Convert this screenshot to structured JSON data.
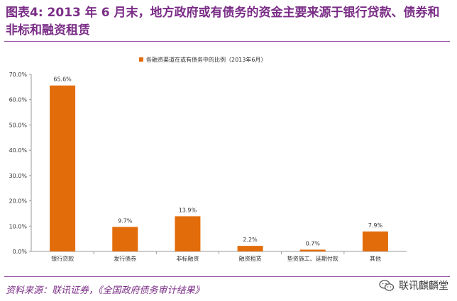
{
  "figure_title": "图表4:  2013 年 6 月末，地方政府或有债务的资金主要来源于银行贷款、债券和非标和融资租赁",
  "source_note": "资料来源：联讯证券，《全国政府债务审计结果》",
  "watermark": {
    "text": "联讯麒麟堂",
    "icon": "wechat-icon"
  },
  "colors": {
    "title": "#7a2d86",
    "bar": "#e36c0a",
    "rule": "#9c5aa8"
  },
  "chart_data": {
    "type": "bar",
    "categories": [
      "银行贷款",
      "发行债券",
      "非标融资",
      "融资租赁",
      "垫资施工、延期付款",
      "其他"
    ],
    "series": [
      {
        "name": "各融资渠道在或有债务中的比例（2013年6月）",
        "values": [
          65.6,
          9.7,
          13.9,
          2.2,
          0.7,
          7.9
        ],
        "labels": [
          "65.6%",
          "9.7%",
          "13.9%",
          "2.2%",
          "0.7%",
          "7.9%"
        ]
      }
    ],
    "ylim": [
      0,
      70
    ],
    "yticks": [
      "0.0%",
      "10.0%",
      "20.0%",
      "30.0%",
      "40.0%",
      "50.0%",
      "60.0%",
      "70.0%"
    ],
    "legend": "top-center",
    "grid": false
  }
}
